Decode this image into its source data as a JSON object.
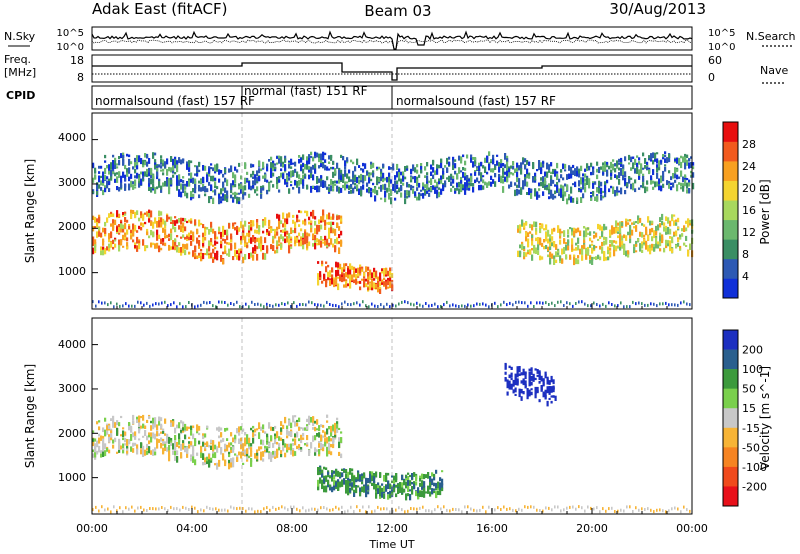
{
  "header": {
    "title": "Adak East (fitACF)",
    "beam": "Beam 03",
    "date": "30/Aug/2013"
  },
  "summary": {
    "nsky_label": "N.Sky",
    "nsearch_label": "N.Search",
    "freq_label_line1": "Freq.",
    "freq_label_line2": "[MHz]",
    "nave_label": "Nave",
    "cpid_label": "CPID",
    "noise_left_ticks": [
      "10^5",
      "10^0"
    ],
    "noise_right_ticks": [
      "10^5",
      "10^0"
    ],
    "freq_left_ticks": [
      "18",
      "8"
    ],
    "freq_right_ticks": [
      "60",
      "0"
    ],
    "cpid_segments": [
      {
        "label": "normalsound (fast) 157 RF",
        "start_h": 0.0,
        "end_h": 6.0
      },
      {
        "label": "normal (fast) 151 RF",
        "start_h": 6.0,
        "end_h": 12.0
      },
      {
        "label": "normalsound (fast) 157 RF",
        "start_h": 12.0,
        "end_h": 24.0
      }
    ]
  },
  "colors": {
    "power": [
      "#1030d8",
      "#2d59b4",
      "#3a8e64",
      "#6bb86e",
      "#a8d85e",
      "#f4d430",
      "#f8a020",
      "#f25a1e",
      "#e80e0e"
    ],
    "velocity": [
      "#1c2fc0",
      "#2a5f8e",
      "#3c9a3c",
      "#7ad04c",
      "#c8c8c8",
      "#f7b436",
      "#f68422",
      "#f04a1c",
      "#e8101a"
    ]
  },
  "chart_data": [
    {
      "type": "heatmap",
      "panel": "power",
      "ylabel": "Slant Range [km]",
      "xlim": [
        0,
        24
      ],
      "ylim": [
        180,
        4600
      ],
      "yticks": [
        "1000",
        "2000",
        "3000",
        "4000"
      ],
      "colorbar_label": "Power [dB]",
      "colorbar_ticks": [
        "4",
        "8",
        "12",
        "16",
        "20",
        "24",
        "28"
      ],
      "colorbar_range": [
        0,
        32
      ],
      "features": [
        {
          "band": "main echo band",
          "x_start": 0,
          "x_end": 10,
          "range_start_km": 1450,
          "range_end_km": 2300,
          "power_db": 24
        },
        {
          "band": "near-range echoes",
          "x_start": 9,
          "x_end": 12,
          "range_start_km": 700,
          "range_end_km": 1200,
          "power_db": 26
        },
        {
          "band": "evening echo band",
          "x_start": 17,
          "x_end": 24,
          "range_start_km": 1400,
          "range_end_km": 2200,
          "power_db": 18
        },
        {
          "band": "far-range scatter",
          "x_start": 0,
          "x_end": 24,
          "range_start_km": 2800,
          "range_end_km": 3600,
          "power_db": 6
        }
      ]
    },
    {
      "type": "heatmap",
      "panel": "velocity",
      "ylabel": "Slant Range [km]",
      "xlabel": "Time UT",
      "xlim": [
        0,
        24
      ],
      "ylim": [
        180,
        4600
      ],
      "yticks": [
        "1000",
        "2000",
        "3000",
        "4000"
      ],
      "xticks": [
        "00:00",
        "04:00",
        "08:00",
        "12:00",
        "16:00",
        "20:00",
        "00:00"
      ],
      "colorbar_label": "Velocity [m s^-1]",
      "colorbar_ticks": [
        "200",
        "100",
        "50",
        "15",
        "-15",
        "-50",
        "-100",
        "-200"
      ],
      "colorbar_range": [
        -250,
        250
      ],
      "features": [
        {
          "band": "main band near zero",
          "x_start": 0,
          "x_end": 10,
          "range_start_km": 1450,
          "range_end_km": 2300,
          "velocity_ms": 0
        },
        {
          "band": "near-range flow",
          "x_start": 9,
          "x_end": 14,
          "range_start_km": 700,
          "range_end_km": 1200,
          "velocity_ms": 60
        },
        {
          "band": "strong flow patch",
          "x_start": 16.5,
          "x_end": 18.5,
          "range_start_km": 2800,
          "range_end_km": 3500,
          "velocity_ms": 200
        }
      ]
    }
  ]
}
